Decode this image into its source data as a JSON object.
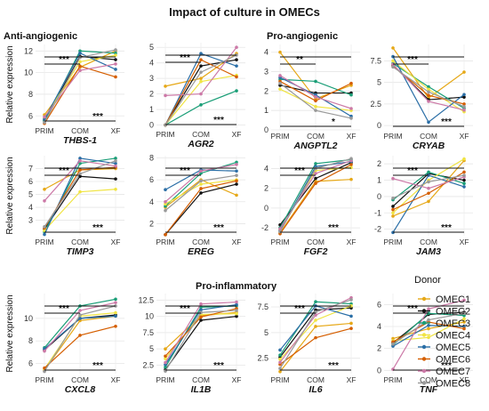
{
  "title": "Impact of culture in OMECs",
  "group_labels": [
    "Anti-angiogenic",
    "Pro-angiogenic",
    "Pro-inflammatory"
  ],
  "ylabel": "Relative expression",
  "categories": [
    "PRIM",
    "COM",
    "XF"
  ],
  "legend": {
    "title": "Donor",
    "entries": [
      {
        "name": "OMEC1",
        "color": "#E6A817"
      },
      {
        "name": "OMEC2",
        "color": "#111111"
      },
      {
        "name": "OMEC3",
        "color": "#1A9E77"
      },
      {
        "name": "OMEC4",
        "color": "#F0E442"
      },
      {
        "name": "OMEC5",
        "color": "#2A6EA6"
      },
      {
        "name": "OMEC6",
        "color": "#D55E00"
      },
      {
        "name": "OMEC7",
        "color": "#CC79A7"
      },
      {
        "name": "OMEC8",
        "color": "#999999"
      }
    ]
  },
  "chart_data": [
    {
      "type": "line",
      "gene": "THBS-1",
      "yticks": [
        6,
        8,
        10,
        12
      ],
      "ylim": [
        5.2,
        12.6
      ],
      "annotations": [
        "***",
        "***"
      ],
      "series": [
        {
          "name": "OMEC1",
          "values": [
            6.1,
            10.5,
            12.0
          ]
        },
        {
          "name": "OMEC2",
          "values": [
            5.6,
            11.5,
            11.2
          ]
        },
        {
          "name": "OMEC3",
          "values": [
            5.5,
            12.0,
            11.8
          ]
        },
        {
          "name": "OMEC4",
          "values": [
            5.8,
            11.0,
            11.6
          ]
        },
        {
          "name": "OMEC5",
          "values": [
            5.7,
            11.8,
            10.3
          ]
        },
        {
          "name": "OMEC6",
          "values": [
            5.3,
            10.6,
            9.6
          ]
        },
        {
          "name": "OMEC7",
          "values": [
            5.9,
            10.2,
            10.8
          ]
        },
        {
          "name": "OMEC8",
          "values": [
            5.4,
            11.4,
            12.1
          ]
        }
      ]
    },
    {
      "type": "line",
      "gene": "AGR2",
      "yticks": [
        0,
        1,
        2,
        3,
        4,
        5
      ],
      "ylim": [
        -0.2,
        5.3
      ],
      "annotations": [
        "***",
        "***"
      ],
      "series": [
        {
          "name": "OMEC1",
          "values": [
            2.5,
            3.0,
            4.6
          ]
        },
        {
          "name": "OMEC2",
          "values": [
            0.0,
            3.8,
            4.2
          ]
        },
        {
          "name": "OMEC3",
          "values": [
            0.0,
            1.3,
            2.2
          ]
        },
        {
          "name": "OMEC4",
          "values": [
            0.0,
            2.8,
            3.2
          ]
        },
        {
          "name": "OMEC5",
          "values": [
            0.0,
            4.6,
            3.8
          ]
        },
        {
          "name": "OMEC6",
          "values": [
            0.0,
            4.2,
            3.1
          ]
        },
        {
          "name": "OMEC7",
          "values": [
            1.9,
            2.0,
            5.0
          ]
        },
        {
          "name": "OMEC8",
          "values": [
            0.0,
            3.4,
            4.5
          ]
        }
      ]
    },
    {
      "type": "line",
      "gene": "ANGPTL2",
      "yticks": [
        0,
        1,
        2,
        3,
        4
      ],
      "ylim": [
        0,
        4.4
      ],
      "annotations": [
        "**",
        "*"
      ],
      "series": [
        {
          "name": "OMEC1",
          "values": [
            4.0,
            1.6,
            2.3
          ]
        },
        {
          "name": "OMEC2",
          "values": [
            2.3,
            1.9,
            1.9
          ]
        },
        {
          "name": "OMEC3",
          "values": [
            2.6,
            2.5,
            1.8
          ]
        },
        {
          "name": "OMEC4",
          "values": [
            2.1,
            1.2,
            1.0
          ]
        },
        {
          "name": "OMEC5",
          "values": [
            2.7,
            1.8,
            0.7
          ]
        },
        {
          "name": "OMEC6",
          "values": [
            2.5,
            1.5,
            2.4
          ]
        },
        {
          "name": "OMEC7",
          "values": [
            2.8,
            1.7,
            1.1
          ]
        },
        {
          "name": "OMEC8",
          "values": [
            2.4,
            1.0,
            0.6
          ]
        }
      ]
    },
    {
      "type": "line",
      "gene": "CRYAB",
      "yticks": [
        0.0,
        2.5,
        5.0,
        7.5
      ],
      "ylim": [
        -0.5,
        9.4
      ],
      "annotations": [
        "***",
        "***"
      ],
      "series": [
        {
          "name": "OMEC1",
          "values": [
            9.0,
            3.2,
            6.2
          ]
        },
        {
          "name": "OMEC2",
          "values": [
            7.0,
            3.0,
            3.3
          ]
        },
        {
          "name": "OMEC3",
          "values": [
            7.2,
            4.5,
            2.0
          ]
        },
        {
          "name": "OMEC4",
          "values": [
            7.5,
            4.2,
            1.6
          ]
        },
        {
          "name": "OMEC5",
          "values": [
            8.0,
            0.4,
            3.6
          ]
        },
        {
          "name": "OMEC6",
          "values": [
            6.9,
            3.5,
            2.5
          ]
        },
        {
          "name": "OMEC7",
          "values": [
            7.1,
            2.8,
            1.8
          ]
        },
        {
          "name": "OMEC8",
          "values": [
            6.8,
            3.9,
            2.2
          ]
        }
      ]
    },
    {
      "type": "line",
      "gene": "TIMP3",
      "yticks": [
        3,
        4,
        5,
        6,
        7
      ],
      "ylim": [
        1.8,
        8.0
      ],
      "annotations": [
        "***",
        "***"
      ],
      "series": [
        {
          "name": "OMEC1",
          "values": [
            5.4,
            6.9,
            7.0
          ]
        },
        {
          "name": "OMEC2",
          "values": [
            2.3,
            6.4,
            6.2
          ]
        },
        {
          "name": "OMEC3",
          "values": [
            2.1,
            7.4,
            7.8
          ]
        },
        {
          "name": "OMEC4",
          "values": [
            2.2,
            5.2,
            5.4
          ]
        },
        {
          "name": "OMEC5",
          "values": [
            1.9,
            7.8,
            7.4
          ]
        },
        {
          "name": "OMEC6",
          "values": [
            2.4,
            6.9,
            7.1
          ]
        },
        {
          "name": "OMEC7",
          "values": [
            4.5,
            7.6,
            7.2
          ]
        },
        {
          "name": "OMEC8",
          "values": [
            2.5,
            6.6,
            7.6
          ]
        }
      ]
    },
    {
      "type": "line",
      "gene": "EREG",
      "yticks": [
        2,
        4,
        6,
        8
      ],
      "ylim": [
        0.9,
        8.2
      ],
      "annotations": [
        "***",
        "***"
      ],
      "series": [
        {
          "name": "OMEC1",
          "values": [
            3.5,
            6.0,
            4.6
          ]
        },
        {
          "name": "OMEC2",
          "values": [
            1.0,
            4.8,
            5.6
          ]
        },
        {
          "name": "OMEC3",
          "values": [
            3.6,
            6.6,
            7.6
          ]
        },
        {
          "name": "OMEC4",
          "values": [
            3.8,
            5.6,
            6.0
          ]
        },
        {
          "name": "OMEC5",
          "values": [
            5.1,
            6.9,
            6.8
          ]
        },
        {
          "name": "OMEC6",
          "values": [
            1.0,
            5.2,
            5.9
          ]
        },
        {
          "name": "OMEC7",
          "values": [
            4.0,
            6.8,
            7.4
          ]
        },
        {
          "name": "OMEC8",
          "values": [
            3.2,
            5.9,
            6.4
          ]
        }
      ]
    },
    {
      "type": "line",
      "gene": "FGF2",
      "yticks": [
        -2,
        0,
        2,
        4
      ],
      "ylim": [
        -2.8,
        5.3
      ],
      "annotations": [
        "***",
        "***"
      ],
      "series": [
        {
          "name": "OMEC1",
          "values": [
            -2.5,
            2.7,
            2.9
          ]
        },
        {
          "name": "OMEC2",
          "values": [
            -1.7,
            3.0,
            4.6
          ]
        },
        {
          "name": "OMEC3",
          "values": [
            -2.0,
            4.5,
            4.9
          ]
        },
        {
          "name": "OMEC4",
          "values": [
            -2.2,
            3.8,
            4.1
          ]
        },
        {
          "name": "OMEC5",
          "values": [
            -2.3,
            4.2,
            4.7
          ]
        },
        {
          "name": "OMEC6",
          "values": [
            -2.6,
            2.5,
            4.4
          ]
        },
        {
          "name": "OMEC7",
          "values": [
            -2.1,
            3.5,
            4.8
          ]
        },
        {
          "name": "OMEC8",
          "values": [
            -2.4,
            4.0,
            5.0
          ]
        }
      ]
    },
    {
      "type": "line",
      "gene": "JAM3",
      "yticks": [
        -2,
        -1,
        0,
        1,
        2
      ],
      "ylim": [
        -2.4,
        2.5
      ],
      "annotations": [
        "***",
        "***"
      ],
      "series": [
        {
          "name": "OMEC1",
          "values": [
            -1.2,
            -0.3,
            2.2
          ]
        },
        {
          "name": "OMEC2",
          "values": [
            -0.6,
            1.4,
            1.0
          ]
        },
        {
          "name": "OMEC3",
          "values": [
            -0.2,
            1.5,
            0.8
          ]
        },
        {
          "name": "OMEC4",
          "values": [
            -1.0,
            1.0,
            2.3
          ]
        },
        {
          "name": "OMEC5",
          "values": [
            -2.2,
            1.3,
            0.6
          ]
        },
        {
          "name": "OMEC6",
          "values": [
            -0.8,
            0.2,
            1.5
          ]
        },
        {
          "name": "OMEC7",
          "values": [
            1.1,
            0.5,
            1.2
          ]
        },
        {
          "name": "OMEC8",
          "values": [
            -0.1,
            0.9,
            1.3
          ]
        }
      ]
    },
    {
      "type": "line",
      "gene": "CXCL8",
      "yticks": [
        6,
        8,
        10
      ],
      "ylim": [
        5.1,
        12.2
      ],
      "annotations": [
        "***",
        "***"
      ],
      "series": [
        {
          "name": "OMEC1",
          "values": [
            5.4,
            9.8,
            10.2
          ]
        },
        {
          "name": "OMEC2",
          "values": [
            7.2,
            10.0,
            10.3
          ]
        },
        {
          "name": "OMEC3",
          "values": [
            7.4,
            11.1,
            11.7
          ]
        },
        {
          "name": "OMEC4",
          "values": [
            5.5,
            10.2,
            10.5
          ]
        },
        {
          "name": "OMEC5",
          "values": [
            7.3,
            10.0,
            10.2
          ]
        },
        {
          "name": "OMEC6",
          "values": [
            5.6,
            8.5,
            9.3
          ]
        },
        {
          "name": "OMEC7",
          "values": [
            7.1,
            10.7,
            11.4
          ]
        },
        {
          "name": "OMEC8",
          "values": [
            5.3,
            10.3,
            11.1
          ]
        }
      ]
    },
    {
      "type": "line",
      "gene": "IL1B",
      "yticks": [
        2.5,
        5.0,
        7.5,
        10.0,
        12.5
      ],
      "ylim": [
        1.2,
        13.5
      ],
      "annotations": [
        "***",
        "***"
      ],
      "series": [
        {
          "name": "OMEC1",
          "values": [
            5.0,
            10.1,
            10.6
          ]
        },
        {
          "name": "OMEC2",
          "values": [
            1.8,
            9.4,
            10.0
          ]
        },
        {
          "name": "OMEC3",
          "values": [
            2.2,
            11.4,
            11.6
          ]
        },
        {
          "name": "OMEC4",
          "values": [
            3.5,
            10.3,
            10.4
          ]
        },
        {
          "name": "OMEC5",
          "values": [
            2.6,
            11.0,
            11.8
          ]
        },
        {
          "name": "OMEC6",
          "values": [
            3.9,
            9.9,
            11.2
          ]
        },
        {
          "name": "OMEC7",
          "values": [
            2.9,
            11.9,
            12.2
          ]
        },
        {
          "name": "OMEC8",
          "values": [
            1.6,
            10.6,
            10.9
          ]
        }
      ]
    },
    {
      "type": "line",
      "gene": "IL6",
      "yticks": [
        2.5,
        5.0,
        7.5
      ],
      "ylim": [
        1.0,
        8.8
      ],
      "annotations": [
        "***",
        "***"
      ],
      "series": [
        {
          "name": "OMEC1",
          "values": [
            1.2,
            5.6,
            5.9
          ]
        },
        {
          "name": "OMEC2",
          "values": [
            2.6,
            7.2,
            7.4
          ]
        },
        {
          "name": "OMEC3",
          "values": [
            2.8,
            8.0,
            7.8
          ]
        },
        {
          "name": "OMEC4",
          "values": [
            2.4,
            6.2,
            7.6
          ]
        },
        {
          "name": "OMEC5",
          "values": [
            3.3,
            7.6,
            6.6
          ]
        },
        {
          "name": "OMEC6",
          "values": [
            1.9,
            4.5,
            5.4
          ]
        },
        {
          "name": "OMEC7",
          "values": [
            2.1,
            6.7,
            8.4
          ]
        },
        {
          "name": "OMEC8",
          "values": [
            1.5,
            7.0,
            8.2
          ]
        }
      ]
    },
    {
      "type": "line",
      "gene": "TNF",
      "yticks": [
        0,
        2,
        4,
        6
      ],
      "ylim": [
        -0.3,
        7.0
      ],
      "annotations": [
        "***",
        "***"
      ],
      "series": [
        {
          "name": "OMEC1",
          "values": [
            2.9,
            3.8,
            4.4
          ]
        },
        {
          "name": "OMEC2",
          "values": [
            2.5,
            5.1,
            5.3
          ]
        },
        {
          "name": "OMEC3",
          "values": [
            2.3,
            5.2,
            5.0
          ]
        },
        {
          "name": "OMEC4",
          "values": [
            2.7,
            3.0,
            4.7
          ]
        },
        {
          "name": "OMEC5",
          "values": [
            2.2,
            4.1,
            4.0
          ]
        },
        {
          "name": "OMEC6",
          "values": [
            2.6,
            4.4,
            3.8
          ]
        },
        {
          "name": "OMEC7",
          "values": [
            0.1,
            5.6,
            6.4
          ]
        },
        {
          "name": "OMEC8",
          "values": [
            2.4,
            4.6,
            5.2
          ]
        }
      ]
    }
  ]
}
